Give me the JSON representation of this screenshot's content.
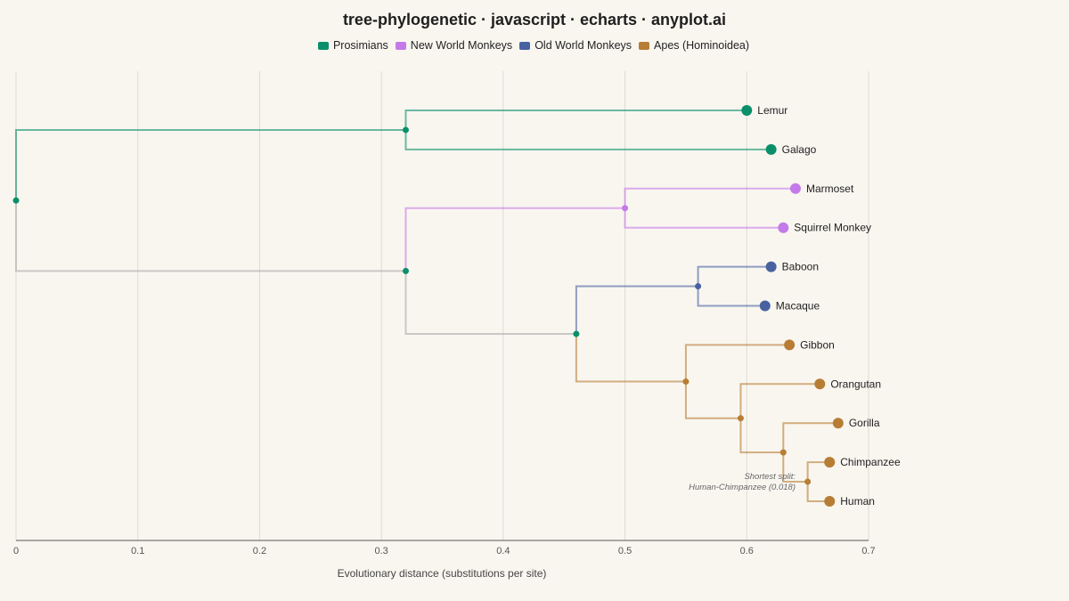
{
  "title": "tree-phylogenetic · javascript · echarts · anyplot.ai",
  "legend": [
    {
      "label": "Prosimians",
      "color": "#0a8f6a"
    },
    {
      "label": "New World Monkeys",
      "color": "#c47ae8"
    },
    {
      "label": "Old World Monkeys",
      "color": "#4862a0"
    },
    {
      "label": "Apes (Hominoidea)",
      "color": "#b87d34"
    }
  ],
  "chart_data": {
    "type": "dendrogram",
    "title": "tree-phylogenetic · javascript · echarts · anyplot.ai",
    "xlabel": "Evolutionary distance (substitutions per site)",
    "xlim": [
      0,
      0.7
    ],
    "xticks": [
      "0",
      "0.1",
      "0.2",
      "0.3",
      "0.4",
      "0.5",
      "0.6",
      "0.7"
    ],
    "grid": "vertical",
    "legend_position": "top-center",
    "root_color": "#aaaaaa",
    "leaves": [
      {
        "name": "Lemur",
        "x": 0.6,
        "group": 0
      },
      {
        "name": "Galago",
        "x": 0.62,
        "group": 0
      },
      {
        "name": "Marmoset",
        "x": 0.64,
        "group": 1
      },
      {
        "name": "Squirrel Monkey",
        "x": 0.63,
        "group": 1
      },
      {
        "name": "Baboon",
        "x": 0.62,
        "group": 2
      },
      {
        "name": "Macaque",
        "x": 0.615,
        "group": 2
      },
      {
        "name": "Gibbon",
        "x": 0.635,
        "group": 3
      },
      {
        "name": "Orangutan",
        "x": 0.66,
        "group": 3
      },
      {
        "name": "Gorilla",
        "x": 0.675,
        "group": 3
      },
      {
        "name": "Chimpanzee",
        "x": 0.668,
        "group": 3
      },
      {
        "name": "Human",
        "x": 0.668,
        "group": 3
      }
    ],
    "nodes": [
      {
        "id": "root",
        "x": 0.0,
        "children": [
          "pros",
          "anth"
        ],
        "group": 0,
        "branch_group": null
      },
      {
        "id": "pros",
        "x": 0.32,
        "children": [
          "Lemur",
          "Galago"
        ],
        "group": 0,
        "branch_group": 0
      },
      {
        "id": "anth",
        "x": 0.32,
        "children": [
          "nwm",
          "catar"
        ],
        "group": 0,
        "branch_group": null
      },
      {
        "id": "nwm",
        "x": 0.5,
        "children": [
          "Marmoset",
          "Squirrel Monkey"
        ],
        "group": 1,
        "branch_group": 1
      },
      {
        "id": "catar",
        "x": 0.46,
        "children": [
          "owm",
          "apes"
        ],
        "group": 0,
        "branch_group": null
      },
      {
        "id": "owm",
        "x": 0.56,
        "children": [
          "Baboon",
          "Macaque"
        ],
        "group": 2,
        "branch_group": 2
      },
      {
        "id": "apes",
        "x": 0.55,
        "children": [
          "Gibbon",
          "great"
        ],
        "group": 3,
        "branch_group": 3
      },
      {
        "id": "great",
        "x": 0.595,
        "children": [
          "Orangutan",
          "afr"
        ],
        "group": 3,
        "branch_group": 3
      },
      {
        "id": "afr",
        "x": 0.63,
        "children": [
          "Gorilla",
          "hc"
        ],
        "group": 3,
        "branch_group": 3
      },
      {
        "id": "hc",
        "x": 0.65,
        "children": [
          "Chimpanzee",
          "Human"
        ],
        "group": 3,
        "branch_group": 3
      }
    ],
    "annotation": {
      "line1": "Shortest split:",
      "line2": "Human-Chimpanzee (0.018)"
    }
  }
}
